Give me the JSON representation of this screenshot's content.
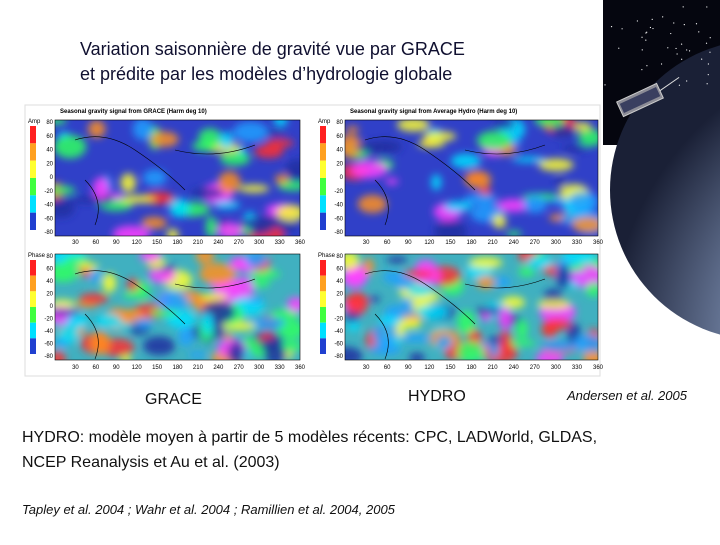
{
  "title": [
    "Variation saisonnière de gravité vue par GRACE",
    "et prédite par les modèles d’hydrologie globale"
  ],
  "figure": {
    "titles": [
      "Seasonal gravity signal from GRACE (Harm deg 10)",
      "Seasonal gravity signal from Average Hydro (Harm deg 10)"
    ],
    "x_ticks": [
      "30",
      "60",
      "90",
      "120",
      "150",
      "180",
      "210",
      "240",
      "270",
      "300",
      "330",
      "360"
    ],
    "lat_ticks": [
      "80",
      "60",
      "40",
      "20",
      "0",
      "-20",
      "-40",
      "-60",
      "-80"
    ],
    "amp_label": "Amp",
    "phase_label": "Phase"
  },
  "captions": {
    "left": "GRACE",
    "right": "HYDRO",
    "source": "Andersen et al. 2005"
  },
  "body": [
    "HYDRO: modèle moyen à partir de 5 modèles récents: CPC, LADWorld, GLDAS,",
    "NCEP Reanalysis et Au et al. (2003)"
  ],
  "references": "Tapley et al. 2004 ; Wahr et al. 2004 ; Ramillien et al. 2004, 2005"
}
